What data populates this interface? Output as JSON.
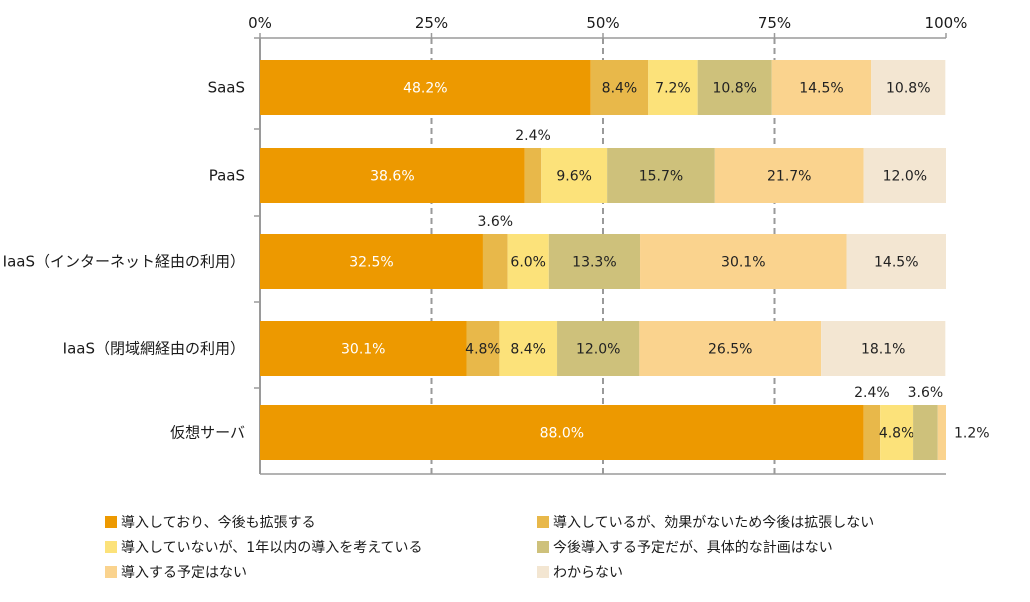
{
  "chart_data": {
    "type": "bar",
    "orientation": "horizontal",
    "stacked": true,
    "categories": [
      "SaaS",
      "PaaS",
      "IaaS（インターネット経由の利用）",
      "IaaS（閉域網経由の利用）",
      "仮想サーバ"
    ],
    "series": [
      {
        "name": "導入しており、今後も拡張する",
        "color": "#ED9900",
        "values": [
          48.2,
          38.6,
          32.5,
          30.1,
          88.0
        ],
        "labels": [
          "48.2%",
          "38.6%",
          "32.5%",
          "30.1%",
          "88.0%"
        ]
      },
      {
        "name": "導入しているが、効果がないため今後は拡張しない",
        "color": "#E8B84A",
        "values": [
          8.4,
          2.4,
          3.6,
          4.8,
          2.4
        ],
        "labels": [
          "8.4%",
          "2.4%",
          "3.6%",
          "4.8%",
          "2.4%"
        ]
      },
      {
        "name": "導入していないが、1年以内の導入を考えている",
        "color": "#FCE27A",
        "values": [
          7.2,
          9.6,
          6.0,
          8.4,
          4.8
        ],
        "labels": [
          "7.2%",
          "9.6%",
          "6.0%",
          "8.4%",
          "4.8%"
        ]
      },
      {
        "name": "今後導入する予定だが、具体的な計画はない",
        "color": "#CEC17B",
        "values": [
          10.8,
          15.7,
          13.3,
          12.0,
          3.6
        ],
        "labels": [
          "10.8%",
          "15.7%",
          "13.3%",
          "12.0%",
          "3.6%"
        ]
      },
      {
        "name": "導入する予定はない",
        "color": "#FAD38E",
        "values": [
          14.5,
          21.7,
          30.1,
          26.5,
          1.2
        ],
        "labels": [
          "14.5%",
          "21.7%",
          "30.1%",
          "26.5%",
          "1.2%"
        ]
      },
      {
        "name": "わからない",
        "color": "#F3E6D2",
        "values": [
          10.8,
          12.0,
          14.5,
          18.1,
          0
        ],
        "labels": [
          "10.8%",
          "12.0%",
          "14.5%",
          "18.1%",
          ""
        ]
      }
    ],
    "xticks": [
      "0%",
      "25%",
      "50%",
      "75%",
      "100%"
    ],
    "xlim": [
      0,
      100
    ],
    "grid": true,
    "legend_position": "bottom"
  }
}
